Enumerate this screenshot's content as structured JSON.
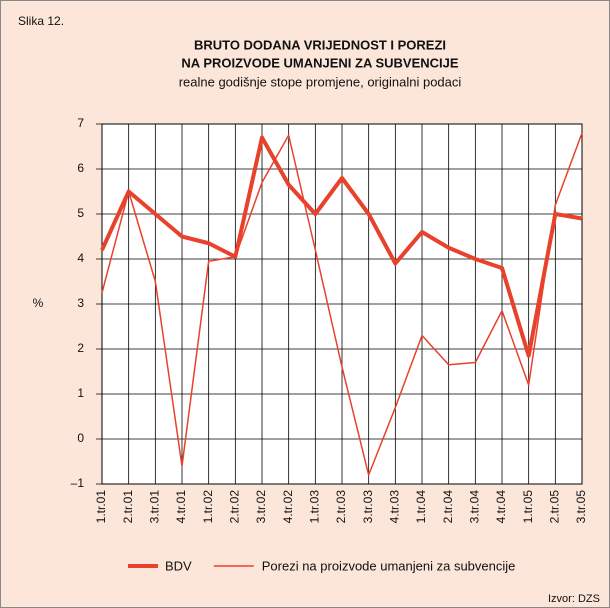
{
  "chart_data": {
    "type": "line",
    "figure_label": "Slika 12.",
    "title": [
      "BRUTO DODANA VRIJEDNOST I POREZI",
      "NA PROIZVODE UMANJENI ZA SUBVENCIJE"
    ],
    "subtitle": "realne godišnje stope promjene, originalni podaci",
    "y_label": "%",
    "source": "Izvor: DZS",
    "categories": [
      "1.tr.01",
      "2.tr.01",
      "3.tr.01",
      "4.tr.01",
      "1.tr.02",
      "2.tr.02",
      "3.tr.02",
      "4.tr.02",
      "1.tr.03",
      "2.tr.03",
      "3.tr.03",
      "4.tr.03",
      "1.tr.04",
      "2.tr.04",
      "3.tr.04",
      "4.tr.04",
      "1.tr.05",
      "2.tr.05",
      "3.tr.05"
    ],
    "series": [
      {
        "name": "BDV",
        "color": "#e8412c",
        "width": 4,
        "values": [
          4.2,
          5.5,
          5.0,
          4.5,
          4.35,
          4.05,
          6.7,
          5.65,
          5.0,
          5.8,
          5.0,
          3.9,
          4.6,
          4.25,
          4.0,
          3.8,
          1.85,
          5.0,
          4.9
        ]
      },
      {
        "name": "Porezi na proizvode umanjeni za subvencije",
        "color": "#e8412c",
        "width": 1.5,
        "values": [
          3.25,
          5.5,
          3.5,
          -0.6,
          3.95,
          4.05,
          5.7,
          6.75,
          4.2,
          1.6,
          -0.8,
          0.7,
          2.3,
          1.65,
          1.7,
          2.85,
          1.2,
          5.2,
          6.8
        ]
      }
    ],
    "ylim": [
      -1,
      7
    ],
    "yticks": [
      {
        "value": -1,
        "label": "–1"
      },
      0,
      1,
      2,
      3,
      4,
      5,
      6,
      7
    ],
    "grid": true,
    "legend": "bottom"
  }
}
